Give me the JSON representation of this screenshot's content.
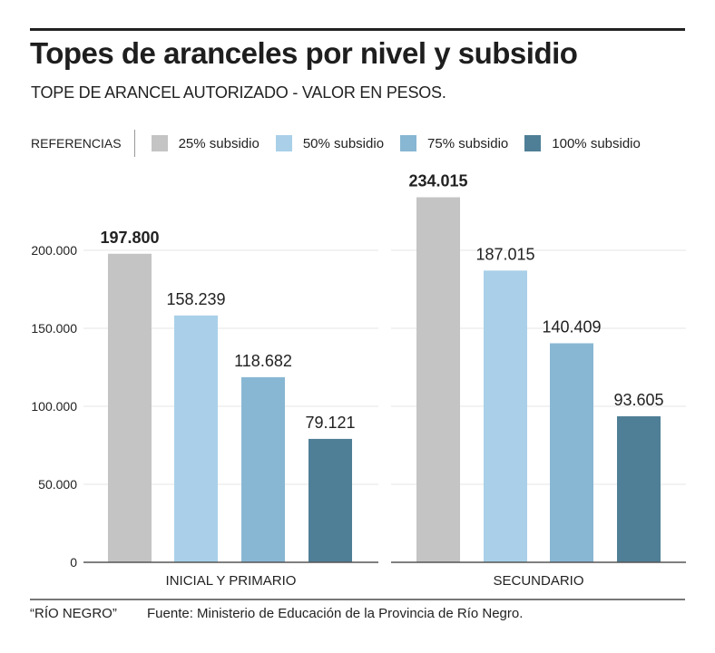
{
  "header": {
    "title": "Topes de aranceles por nivel y subsidio",
    "subtitle": "TOPE DE ARANCEL AUTORIZADO - VALOR EN PESOS."
  },
  "legend": {
    "heading": "REFERENCIAS",
    "items": [
      {
        "label": "25% subsidio",
        "color": "#c4c4c4"
      },
      {
        "label": "50% subsidio",
        "color": "#a9d0e8"
      },
      {
        "label": "75% subsidio",
        "color": "#88b7d3"
      },
      {
        "label": "100% subsidio",
        "color": "#4f7f96"
      }
    ]
  },
  "footer": {
    "credit": "“RÍO NEGRO”",
    "source": "Fuente: Ministerio de Educación de la Provincia de Río Negro."
  },
  "chart_data": {
    "type": "bar",
    "title": "Topes de aranceles por nivel y subsidio",
    "subtitle": "TOPE DE ARANCEL AUTORIZADO - VALOR EN PESOS.",
    "xlabel": "",
    "ylabel": "",
    "ylim": [
      0,
      250000
    ],
    "grid": true,
    "legend_position": "top",
    "categories": [
      "INICIAL Y PRIMARIO",
      "SECUNDARIO"
    ],
    "yticks": [
      0,
      50000,
      100000,
      150000,
      200000
    ],
    "ytick_labels": [
      "0",
      "50.000",
      "100.000",
      "150.000",
      "200.000"
    ],
    "series": [
      {
        "name": "25% subsidio",
        "color": "#c4c4c4",
        "values": [
          197800,
          234015
        ],
        "labels": [
          "197.800",
          "234.015"
        ],
        "bold": true
      },
      {
        "name": "50% subsidio",
        "color": "#a9d0e8",
        "values": [
          158239,
          187015
        ],
        "labels": [
          "158.239",
          "187.015"
        ],
        "bold": false
      },
      {
        "name": "75% subsidio",
        "color": "#88b7d3",
        "values": [
          118682,
          140409
        ],
        "labels": [
          "118.682",
          "140.409"
        ],
        "bold": false
      },
      {
        "name": "100% subsidio",
        "color": "#4f7f96",
        "values": [
          79121,
          93605
        ],
        "labels": [
          "79.121",
          "93.605"
        ],
        "bold": false
      }
    ]
  }
}
